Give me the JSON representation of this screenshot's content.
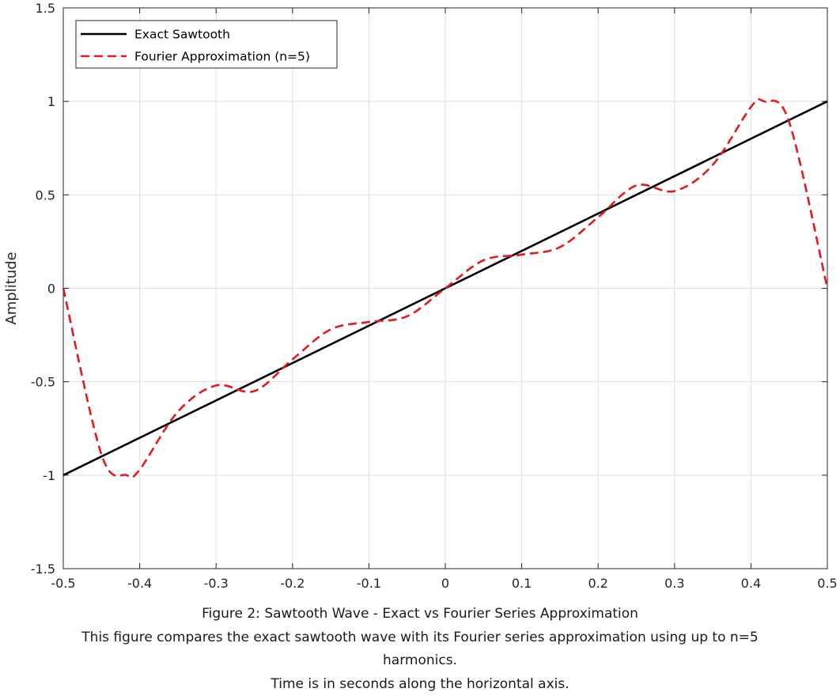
{
  "chart_data": {
    "type": "line",
    "title": "",
    "xlabel": "",
    "ylabel": "Amplitude",
    "xlim": [
      -0.5,
      0.5
    ],
    "ylim": [
      -1.5,
      1.5
    ],
    "grid": true,
    "xticks": [
      -0.5,
      -0.4,
      -0.3,
      -0.2,
      -0.1,
      0,
      0.1,
      0.2,
      0.3,
      0.4,
      0.5
    ],
    "xtick_labels": [
      "-0.5",
      "-0.4",
      "-0.3",
      "-0.2",
      "-0.1",
      "0",
      "0.1",
      "0.2",
      "0.3",
      "0.4",
      "0.5"
    ],
    "yticks": [
      -1.5,
      -1,
      -0.5,
      0,
      0.5,
      1,
      1.5
    ],
    "ytick_labels": [
      "-1.5",
      "-1",
      "-0.5",
      "0",
      "0.5",
      "1",
      "1.5"
    ],
    "legend_position": "top-left",
    "series": [
      {
        "name": "Exact Sawtooth",
        "style": "solid",
        "color": "#000000",
        "x": [
          -0.5,
          0.5
        ],
        "y": [
          -1,
          1
        ]
      },
      {
        "name": "Fourier Approximation (n=5)",
        "style": "dashed",
        "color": "#e41a1c",
        "harmonics": 5,
        "x": [
          -0.5,
          -0.45,
          -0.417,
          -0.4,
          -0.35,
          -0.3,
          -0.25,
          -0.2,
          -0.15,
          -0.1,
          -0.05,
          0,
          0.05,
          0.1,
          0.15,
          0.2,
          0.25,
          0.3,
          0.35,
          0.4,
          0.417,
          0.45,
          0.5
        ],
        "y": [
          0,
          -0.89,
          -1.0,
          -0.97,
          -0.66,
          -0.52,
          -0.55,
          -0.38,
          -0.22,
          -0.18,
          -0.15,
          0,
          0.15,
          0.18,
          0.22,
          0.38,
          0.55,
          0.52,
          0.66,
          0.97,
          1.0,
          0.89,
          0
        ]
      }
    ]
  },
  "caption": {
    "line1": "Figure 2: Sawtooth Wave - Exact vs Fourier Series Approximation",
    "line2": "This figure compares the exact sawtooth wave with its Fourier series approximation using up to n=5 harmonics.",
    "line3": "Time is in seconds along the horizontal axis."
  }
}
